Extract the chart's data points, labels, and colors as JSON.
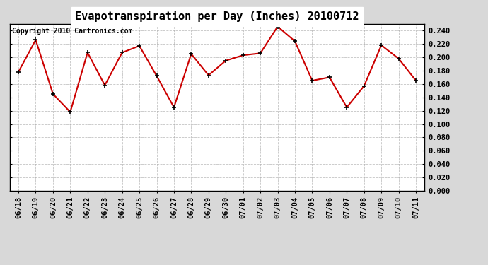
{
  "title": "Evapotranspiration per Day (Inches) 20100712",
  "copyright_text": "Copyright 2010 Cartronics.com",
  "labels": [
    "06/18",
    "06/19",
    "06/20",
    "06/21",
    "06/22",
    "06/23",
    "06/24",
    "06/25",
    "06/26",
    "06/27",
    "06/28",
    "06/29",
    "06/30",
    "07/01",
    "07/02",
    "07/03",
    "07/04",
    "07/05",
    "07/06",
    "07/07",
    "07/08",
    "07/09",
    "07/10",
    "07/11"
  ],
  "values": [
    0.178,
    0.226,
    0.145,
    0.118,
    0.207,
    0.158,
    0.207,
    0.217,
    0.172,
    0.125,
    0.205,
    0.173,
    0.195,
    0.203,
    0.206,
    0.246,
    0.224,
    0.165,
    0.17,
    0.125,
    0.157,
    0.218,
    0.198,
    0.165
  ],
  "line_color": "#cc0000",
  "marker": "+",
  "marker_color": "#000000",
  "marker_size": 5,
  "line_width": 1.5,
  "ylim": [
    0.0,
    0.25
  ],
  "ytick_min": 0.0,
  "ytick_max": 0.24,
  "ytick_step": 0.02,
  "plot_bg_color": "#ffffff",
  "fig_bg_color": "#d8d8d8",
  "title_bg_color": "#ffffff",
  "grid_color": "#aaaaaa",
  "title_fontsize": 11,
  "copyright_fontsize": 7,
  "tick_fontsize": 7.5
}
